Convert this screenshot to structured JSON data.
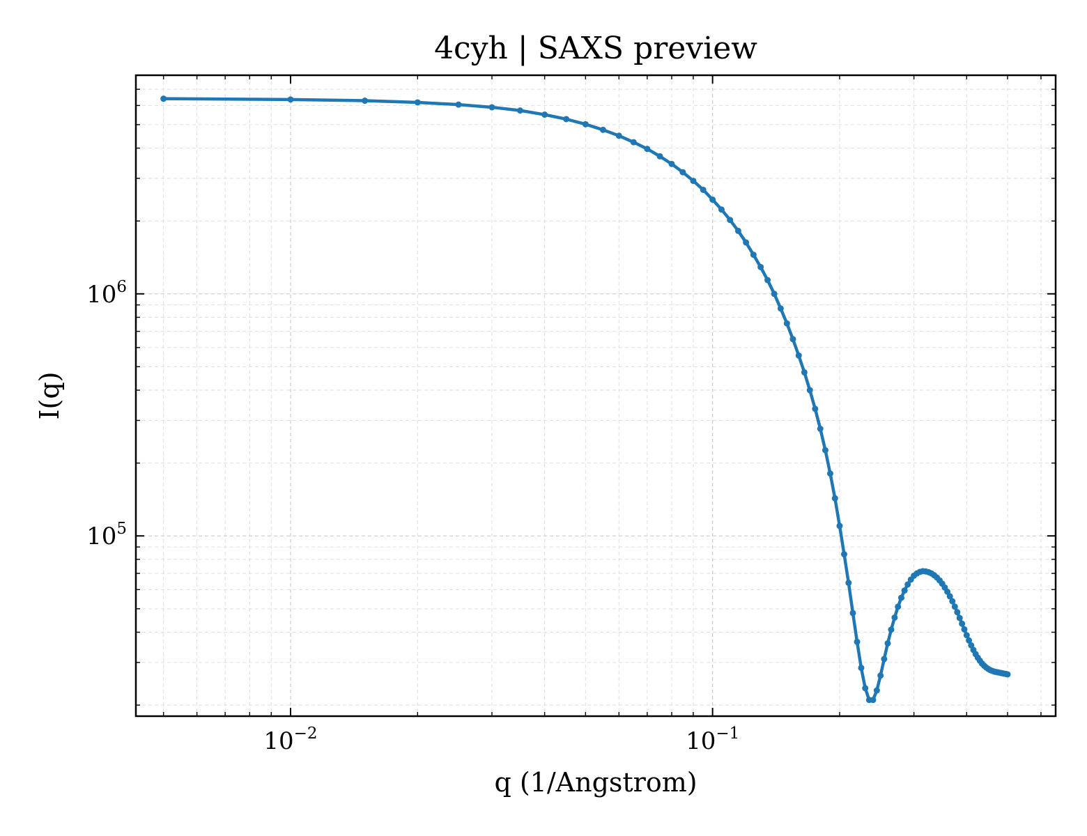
{
  "chart_data": {
    "type": "line",
    "title": "4cyh | SAXS preview",
    "xlabel": "q (1/Angstrom)",
    "ylabel": "I(q)",
    "x_scale": "log",
    "y_scale": "log",
    "xlim": [
      0.0043,
      0.65
    ],
    "ylim": [
      18000,
      8000000
    ],
    "grid": true,
    "line_color": "#1f77b4",
    "x_ticks": [
      {
        "value": 0.01,
        "base": "10",
        "exp": "−2"
      },
      {
        "value": 0.1,
        "base": "10",
        "exp": "−1"
      }
    ],
    "y_ticks": [
      {
        "value": 100000,
        "base": "10",
        "exp": "5"
      },
      {
        "value": 1000000,
        "base": "10",
        "exp": "6"
      }
    ],
    "series": [
      {
        "x": [
          0.005,
          0.01,
          0.015,
          0.02,
          0.025,
          0.03,
          0.035,
          0.04,
          0.045,
          0.05,
          0.055,
          0.06,
          0.065,
          0.07,
          0.075,
          0.08,
          0.085,
          0.09,
          0.095,
          0.1,
          0.105,
          0.11,
          0.115,
          0.12,
          0.125,
          0.13,
          0.135,
          0.14,
          0.145,
          0.15,
          0.155,
          0.16,
          0.165,
          0.17,
          0.175,
          0.18,
          0.185,
          0.19,
          0.195,
          0.2,
          0.205,
          0.21,
          0.215,
          0.22,
          0.225,
          0.23,
          0.235,
          0.24,
          0.245,
          0.25,
          0.255,
          0.26,
          0.265,
          0.27,
          0.275,
          0.28,
          0.285,
          0.29,
          0.295,
          0.3,
          0.305,
          0.31,
          0.315,
          0.32,
          0.325,
          0.33,
          0.335,
          0.34,
          0.345,
          0.35,
          0.355,
          0.36,
          0.365,
          0.37,
          0.375,
          0.38,
          0.385,
          0.39,
          0.395,
          0.4,
          0.405,
          0.41,
          0.415,
          0.42,
          0.425,
          0.43,
          0.435,
          0.44,
          0.445,
          0.45,
          0.455,
          0.46,
          0.465,
          0.47,
          0.475,
          0.48,
          0.485,
          0.49,
          0.495,
          0.5
        ],
        "y": [
          6400000,
          6350000,
          6280000,
          6180000,
          6050000,
          5900000,
          5720000,
          5500000,
          5270000,
          5020000,
          4760000,
          4500000,
          4230000,
          3970000,
          3700000,
          3440000,
          3180000,
          2930000,
          2690000,
          2450000,
          2230000,
          2020000,
          1820000,
          1630000,
          1450000,
          1290000,
          1140000,
          1000000,
          870000,
          755000,
          650000,
          556000,
          474000,
          400000,
          335000,
          277000,
          226000,
          181000,
          143000,
          110000,
          84000,
          64000,
          48000,
          36500,
          28500,
          23500,
          21000,
          21000,
          23000,
          26500,
          31000,
          36000,
          41000,
          46000,
          51000,
          55500,
          59500,
          63000,
          66000,
          68500,
          70000,
          71000,
          71500,
          71300,
          70800,
          70000,
          68800,
          67300,
          65500,
          63500,
          61200,
          58800,
          56300,
          53700,
          51000,
          48400,
          45800,
          43400,
          41100,
          38900,
          37000,
          35300,
          33800,
          32500,
          31400,
          30500,
          29700,
          29100,
          28600,
          28200,
          27900,
          27700,
          27500,
          27400,
          27300,
          27200,
          27100,
          27000,
          26900,
          26800
        ]
      }
    ]
  }
}
